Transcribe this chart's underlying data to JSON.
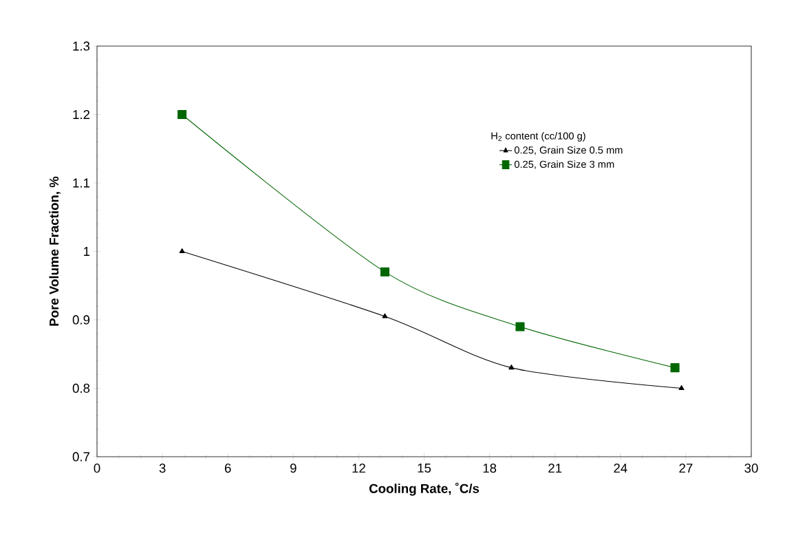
{
  "chart_data": {
    "type": "line",
    "xlabel": "Cooling Rate, ˚C/s",
    "ylabel": "Pore Volume Fraction, %",
    "legend_title": "H$_{2}$ content (cc/100 g)",
    "xlim": [
      0,
      30
    ],
    "xticks": [
      0,
      3,
      6,
      9,
      12,
      15,
      18,
      21,
      24,
      27,
      30
    ],
    "ylim": [
      0.7,
      1.3
    ],
    "yticks": [
      0.7,
      0.8,
      0.9,
      1,
      1.1,
      1.2,
      1.3
    ],
    "grid": false,
    "legend": "top right",
    "line_style": "solid",
    "series": [
      {
        "name": "0.25, Grain Size 0.5 mm",
        "color": "#000000",
        "marker": "triangle",
        "x": [
          3.9,
          13.2,
          19.0,
          26.8
        ],
        "values": [
          1.0,
          0.905,
          0.83,
          0.8
        ]
      },
      {
        "name": "0.25, Grain Size 3 mm",
        "color": "#006600",
        "marker": "square",
        "x": [
          3.9,
          13.2,
          19.4,
          26.5
        ],
        "values": [
          1.2,
          0.97,
          0.89,
          0.83
        ]
      }
    ]
  }
}
